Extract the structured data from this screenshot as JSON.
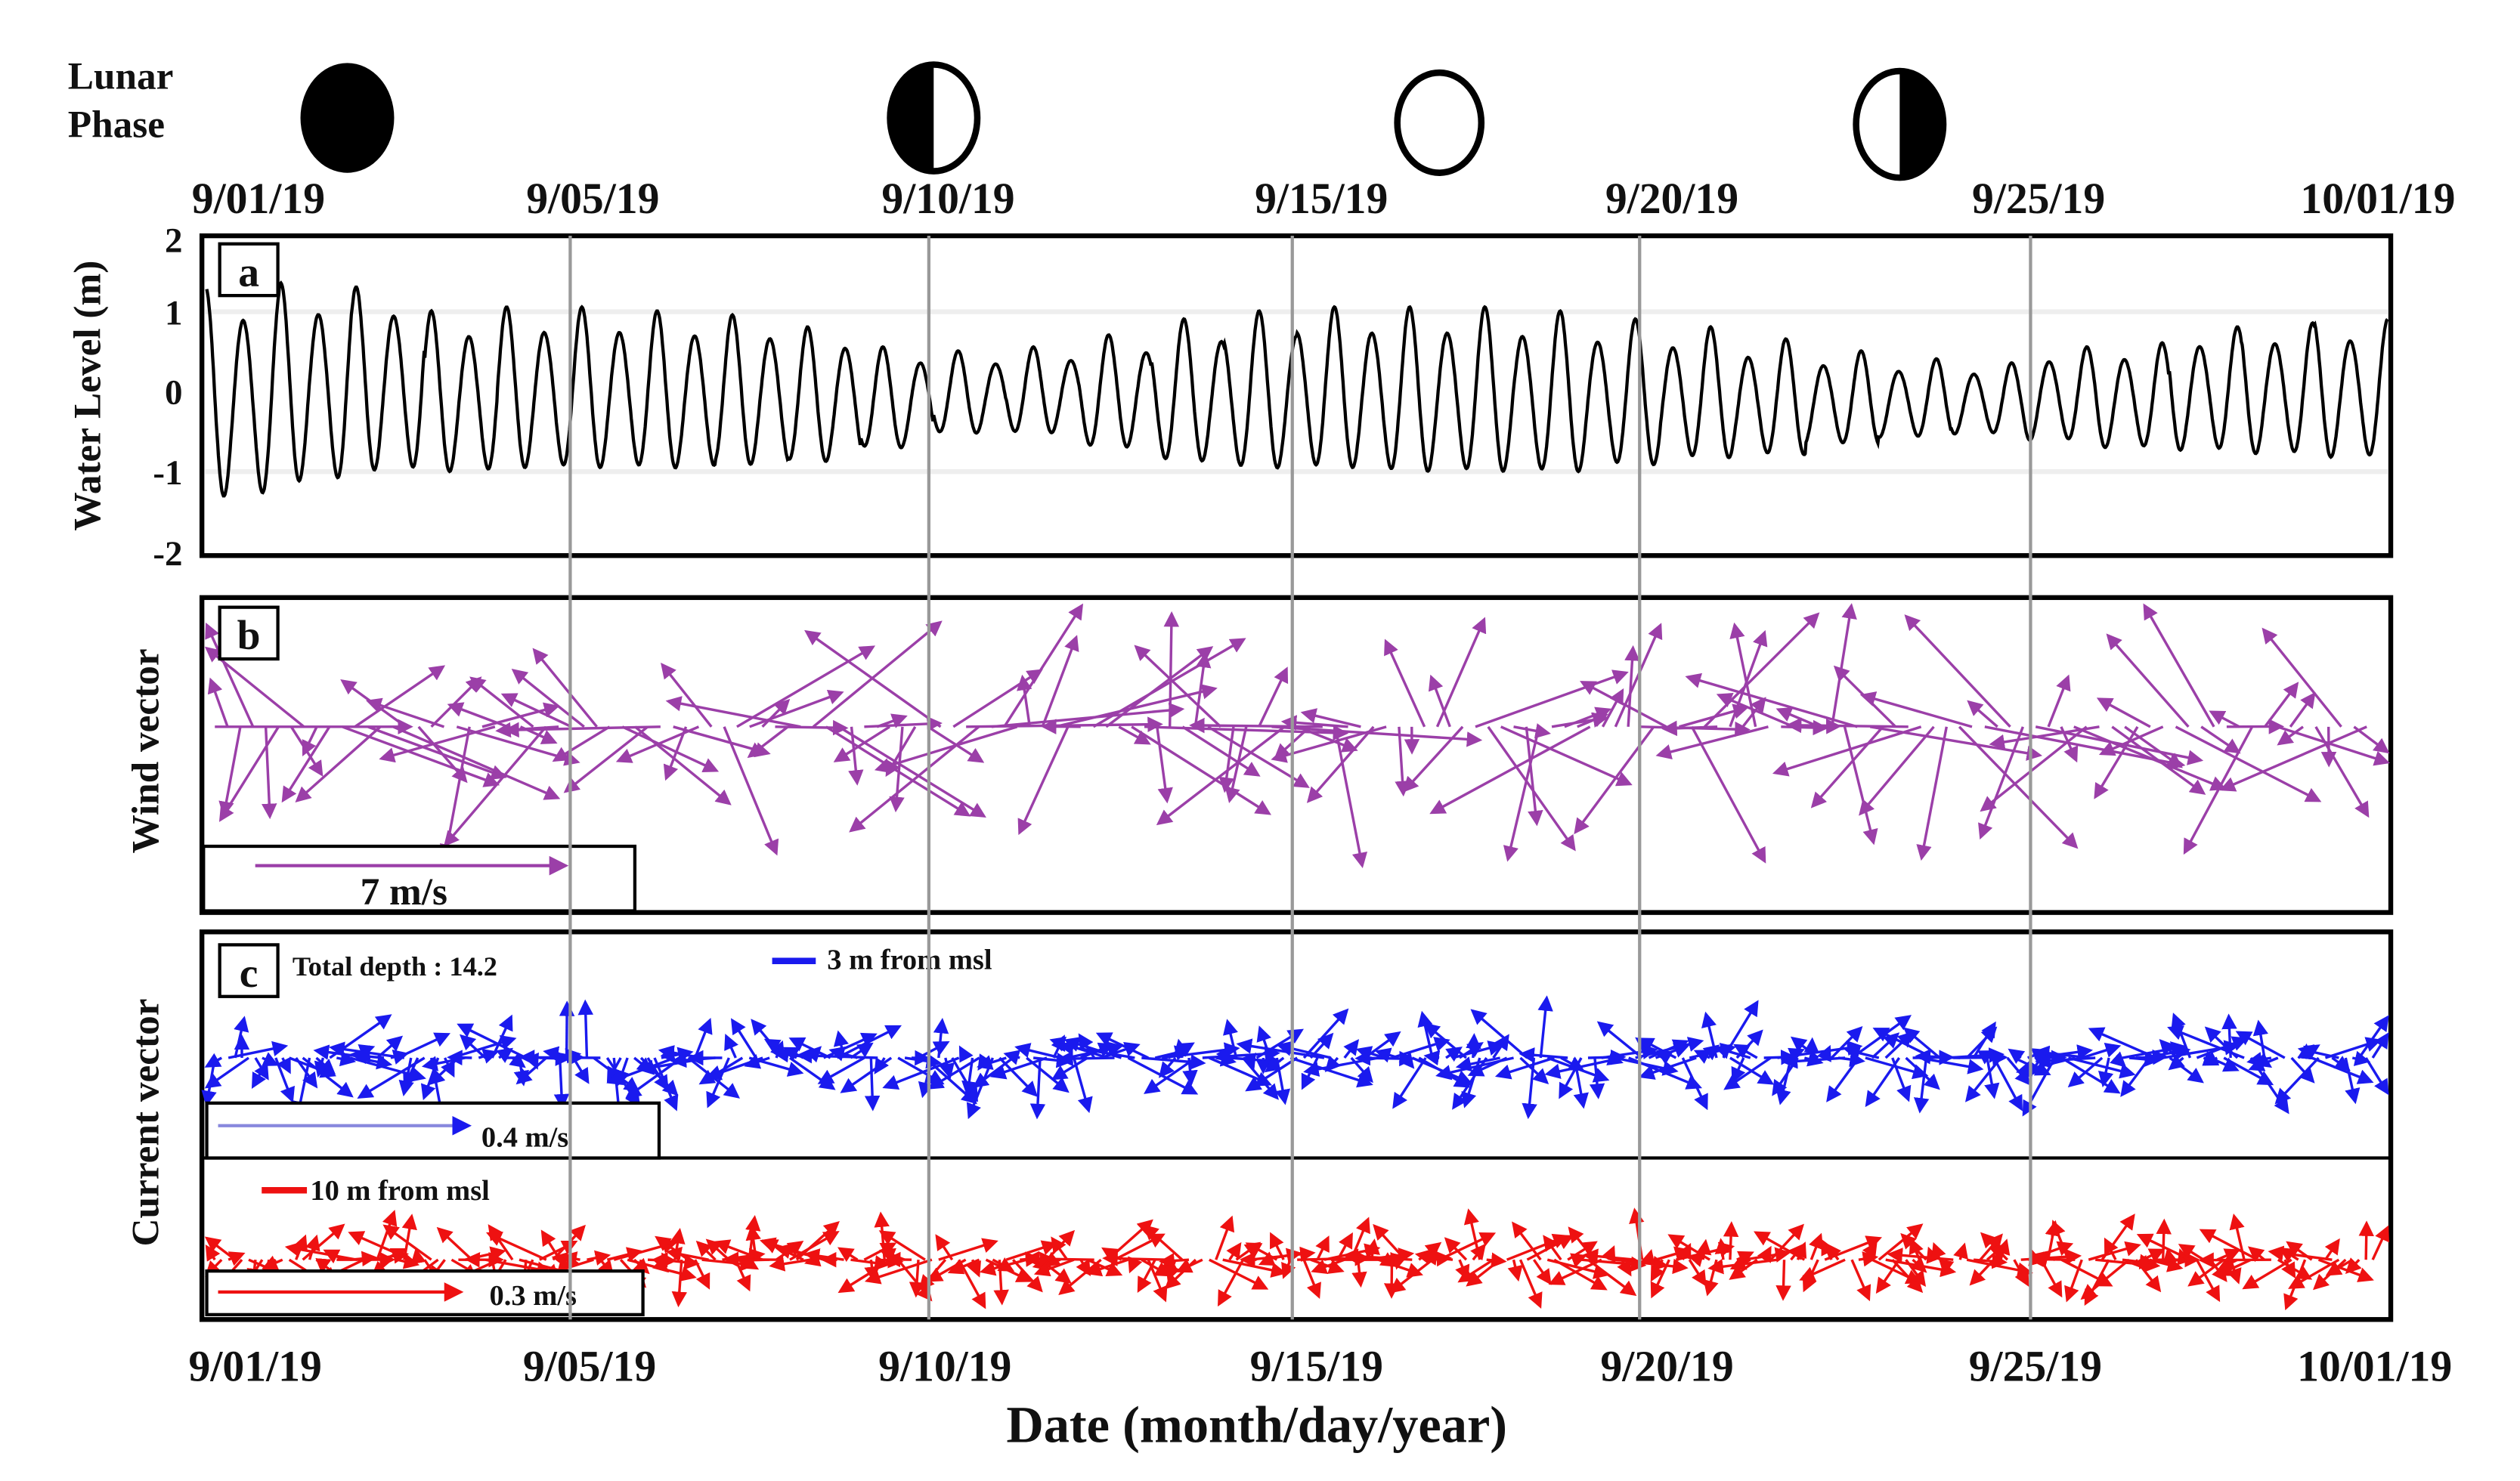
{
  "chart_data": [
    {
      "type": "line",
      "panel_label": "a",
      "ylabel": "Water Level (m)",
      "ylim": [
        -2,
        2
      ],
      "yticks": [
        "2",
        "1",
        "0",
        "-1",
        "-2"
      ],
      "x_range": [
        "9/01/19",
        "10/01/19"
      ],
      "daily_high_m": [
        1.3,
        1.35,
        1.3,
        1.0,
        1.05,
        1.05,
        1.0,
        0.95,
        0.8,
        0.55,
        0.5,
        0.55,
        0.7,
        0.9,
        1.0,
        1.05,
        1.05,
        1.05,
        1.0,
        0.9,
        0.8,
        0.65,
        0.5,
        0.4,
        0.35,
        0.55,
        0.6,
        0.8,
        0.85,
        0.9
      ],
      "daily_low_m": [
        -1.5,
        -1.3,
        -1.15,
        -1.15,
        -1.1,
        -1.1,
        -1.1,
        -1.05,
        -1.0,
        -0.8,
        -0.6,
        -0.6,
        -0.8,
        -1.0,
        -1.1,
        -1.1,
        -1.15,
        -1.15,
        -1.15,
        -1.05,
        -0.95,
        -0.9,
        -0.75,
        -0.65,
        -0.6,
        -0.7,
        -0.8,
        -0.85,
        -0.9,
        -0.95
      ]
    },
    {
      "type": "vector",
      "panel_label": "b",
      "ylabel": "Wind vector",
      "scale_label": "7 m/s",
      "color": "#9b3fa8"
    },
    {
      "type": "vector",
      "panel_label": "c",
      "ylabel": "Current vector",
      "subtitle": "Total depth : 14.2",
      "series": [
        {
          "name": "3 m from msl",
          "scale_label": "0.4 m/s",
          "color": "#1a1aee"
        },
        {
          "name": "10 m from msl",
          "scale_label": "0.3 m/s",
          "color": "#ee1111"
        }
      ]
    }
  ],
  "lunar": {
    "label_line1": "Lunar",
    "label_line2": "Phase",
    "phases": [
      "new-moon",
      "first-quarter",
      "full-moon",
      "last-quarter"
    ]
  },
  "x_ticks": [
    "9/01/19",
    "9/05/19",
    "9/10/19",
    "9/15/19",
    "9/20/19",
    "9/25/19",
    "10/01/19"
  ],
  "xlabel": "Date (month/day/year)"
}
